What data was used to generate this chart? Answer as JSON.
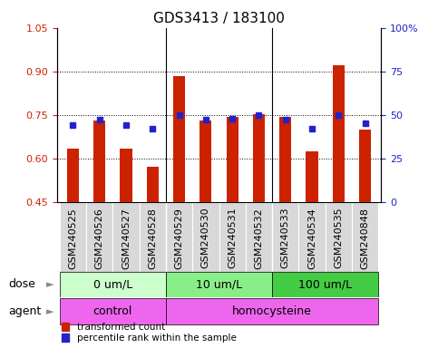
{
  "title": "GDS3413 / 183100",
  "samples": [
    "GSM240525",
    "GSM240526",
    "GSM240527",
    "GSM240528",
    "GSM240529",
    "GSM240530",
    "GSM240531",
    "GSM240532",
    "GSM240533",
    "GSM240534",
    "GSM240535",
    "GSM240848"
  ],
  "red_values": [
    0.635,
    0.73,
    0.635,
    0.57,
    0.882,
    0.73,
    0.743,
    0.752,
    0.742,
    0.625,
    0.92,
    0.698
  ],
  "blue_values": [
    44,
    47,
    44,
    42,
    50,
    47,
    48,
    50,
    47,
    42,
    50,
    45
  ],
  "ylim_left": [
    0.45,
    1.05
  ],
  "ylim_right": [
    0,
    100
  ],
  "yticks_left": [
    0.45,
    0.6,
    0.75,
    0.9,
    1.05
  ],
  "yticks_right": [
    0,
    25,
    50,
    75,
    100
  ],
  "ytick_labels_right": [
    "0",
    "25",
    "50",
    "75",
    "100%"
  ],
  "dose_groups": [
    {
      "label": "0 um/L",
      "start": 0,
      "end": 4
    },
    {
      "label": "10 um/L",
      "start": 4,
      "end": 8
    },
    {
      "label": "100 um/L",
      "start": 8,
      "end": 12
    }
  ],
  "agent_groups": [
    {
      "label": "control",
      "start": 0,
      "end": 4
    },
    {
      "label": "homocysteine",
      "start": 4,
      "end": 12
    }
  ],
  "red_color": "#cc2200",
  "blue_color": "#2222cc",
  "bar_width": 0.45,
  "bar_base": 0.45,
  "blue_marker_size": 5,
  "dose_label": "dose",
  "agent_label": "agent",
  "legend_red": "transformed count",
  "legend_blue": "percentile rank within the sample",
  "title_fontsize": 11,
  "tick_fontsize": 8,
  "label_fontsize": 9,
  "dose_green_light": "#ccffcc",
  "dose_green_mid": "#88ee88",
  "dose_green_dark": "#44cc44",
  "agent_magenta": "#ee66ee",
  "xtick_bg": "#d8d8d8",
  "sep_color": "#000000"
}
